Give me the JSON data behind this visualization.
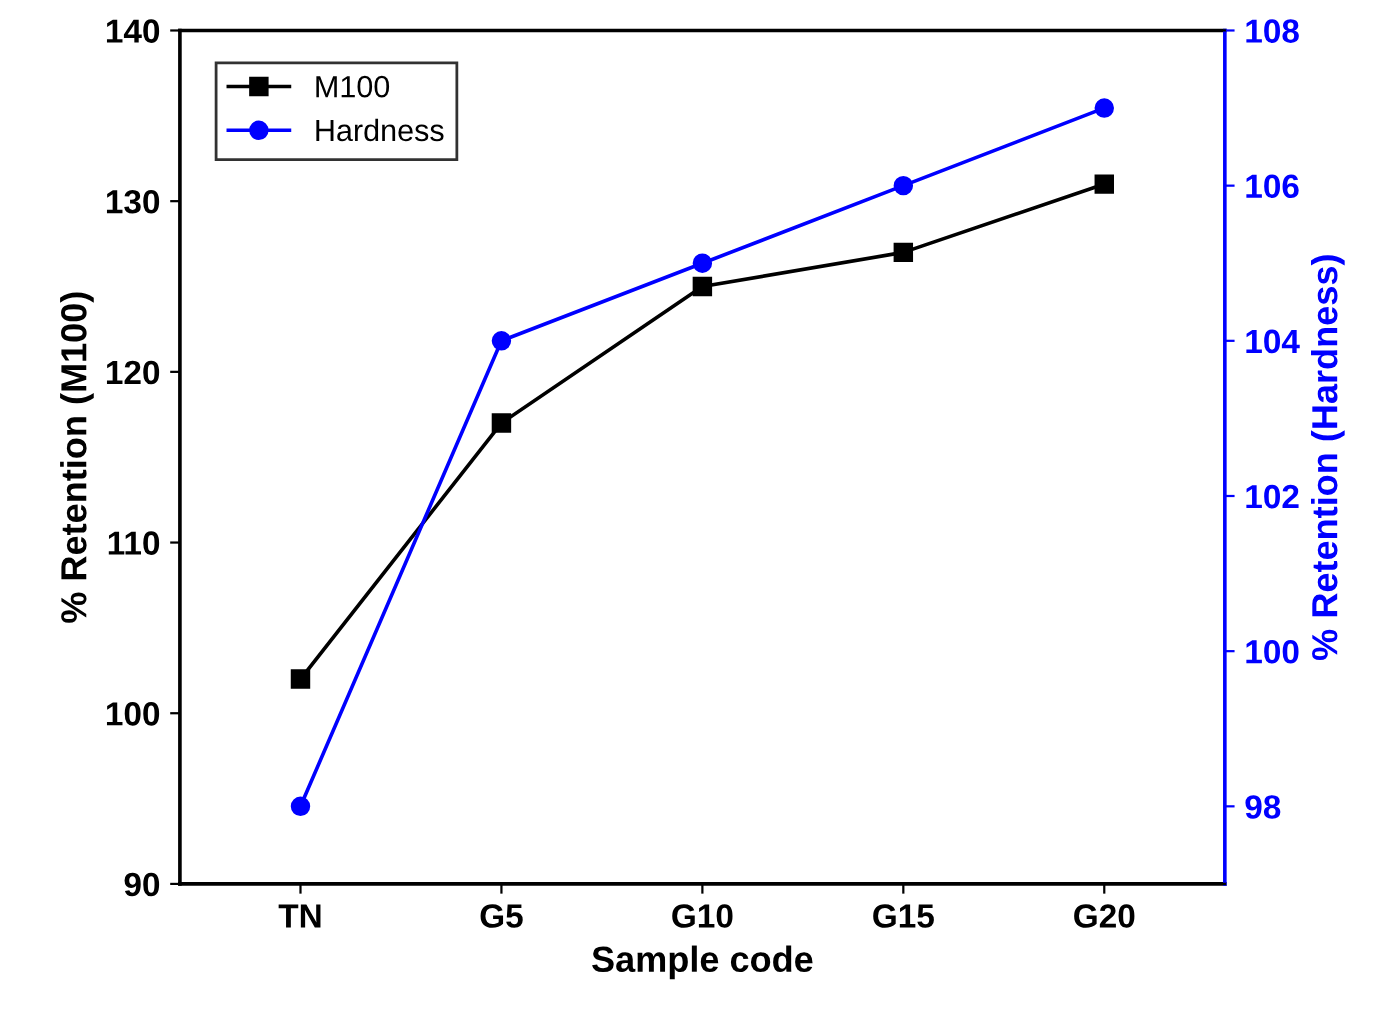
{
  "chart_data": {
    "type": "line",
    "xlabel": "Sample code",
    "ylabel": "% Retention (M100)",
    "y2label": "% Retention (Hardness)",
    "categories": [
      "TN",
      "G5",
      "G10",
      "G15",
      "G20"
    ],
    "series": [
      {
        "name": "M100",
        "color": "#000000",
        "values": [
          102,
          117,
          125,
          127,
          131
        ],
        "marker": "square"
      },
      {
        "name": "Hardness",
        "color": "#0000ff",
        "values": [
          98,
          104,
          105,
          106,
          107
        ],
        "marker": "circle",
        "axis": "y2"
      }
    ],
    "ylim": [
      90,
      140
    ],
    "yticks": [
      90,
      100,
      110,
      120,
      130,
      140
    ],
    "y2lim": [
      97,
      108
    ],
    "y2ticks": [
      98,
      100,
      102,
      104,
      106,
      108
    ],
    "legend": "top left",
    "grid": false,
    "line_style": "solid"
  }
}
